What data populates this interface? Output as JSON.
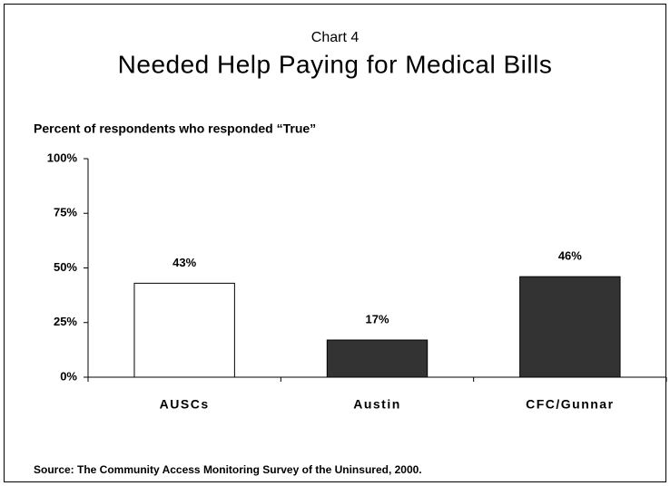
{
  "chart_data": {
    "type": "bar",
    "title": "Chart 4",
    "subtitle": "Needed Help Paying for Medical Bills",
    "y_label": "Percent of respondents who responded “True”",
    "source": "Source: The Community Access Monitoring Survey of the Uninsured, 2000.",
    "categories": [
      "AUSCs",
      "Austin",
      "CFC/Gunnar"
    ],
    "values": [
      43,
      17,
      46
    ],
    "value_labels": [
      "43%",
      "17%",
      "46%"
    ],
    "colors": [
      "#ffffff",
      "#333333",
      "#333333"
    ],
    "edgecolor": "#000000",
    "ylim": [
      0,
      100
    ],
    "yticks": [
      {
        "value": 0,
        "label": "0%"
      },
      {
        "value": 25,
        "label": "25%"
      },
      {
        "value": 50,
        "label": "50%"
      },
      {
        "value": 75,
        "label": "75%"
      },
      {
        "value": 100,
        "label": "100%"
      }
    ],
    "grid": false
  }
}
